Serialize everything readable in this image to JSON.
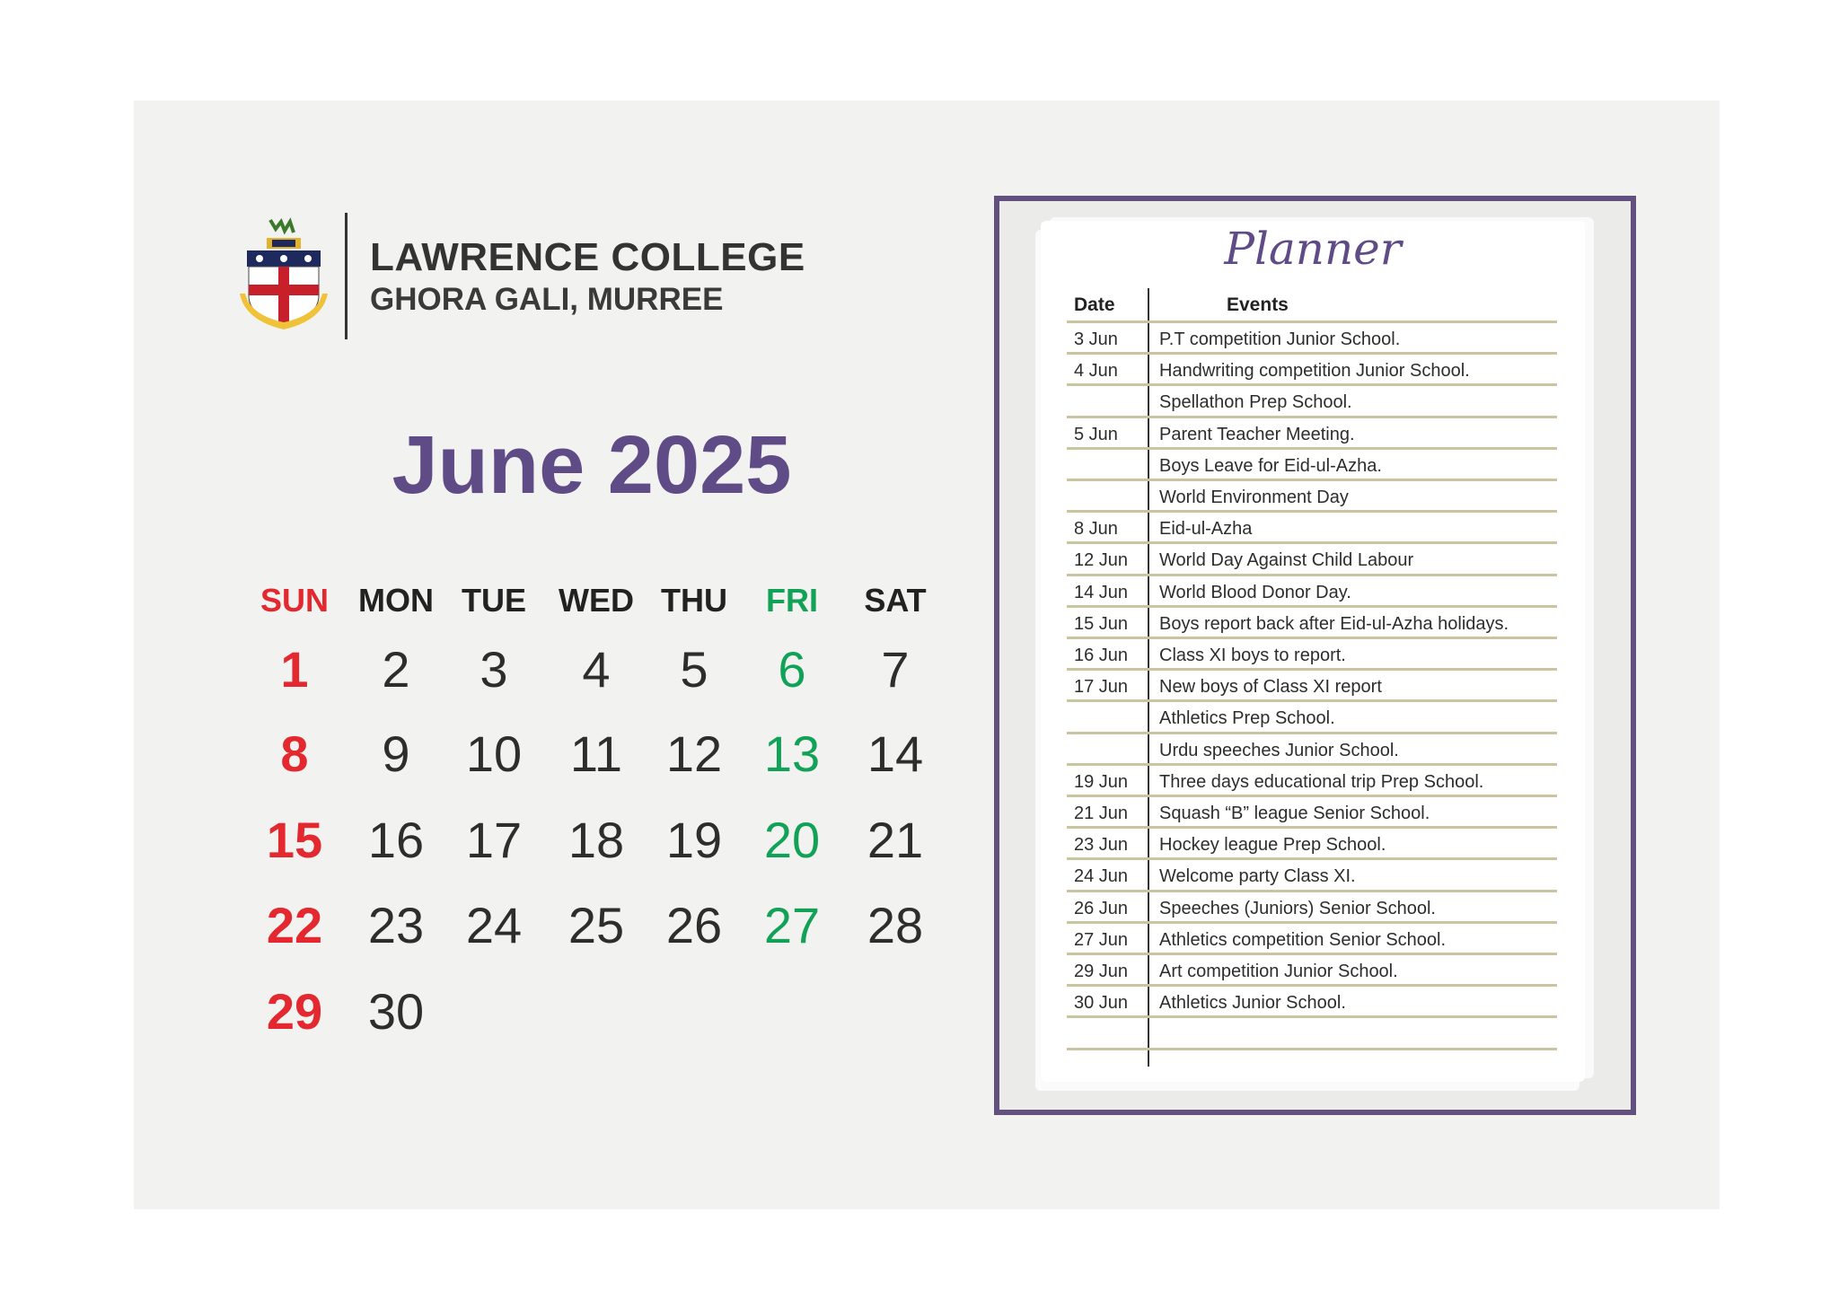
{
  "header": {
    "college_name": "LAWRENCE COLLEGE",
    "location": "GHORA GALI, MURREE",
    "logo": "college-crest"
  },
  "calendar": {
    "title": "June 2025",
    "weekdays": [
      "SUN",
      "MON",
      "TUE",
      "WED",
      "THU",
      "FRI",
      "SAT"
    ],
    "weeks": [
      [
        "1",
        "2",
        "3",
        "4",
        "5",
        "6",
        "7"
      ],
      [
        "8",
        "9",
        "10",
        "11",
        "12",
        "13",
        "14"
      ],
      [
        "15",
        "16",
        "17",
        "18",
        "19",
        "20",
        "21"
      ],
      [
        "22",
        "23",
        "24",
        "25",
        "26",
        "27",
        "28"
      ],
      [
        "29",
        "30",
        null,
        null,
        null,
        null,
        null
      ]
    ],
    "colors": {
      "sunday": "#e3282f",
      "friday": "#11a157",
      "weekday": "#2d2d2d",
      "title": "#5f4b86"
    }
  },
  "planner": {
    "title": "Planner",
    "col_date": "Date",
    "col_events": "Events",
    "frame_color": "#62517f",
    "rows": [
      {
        "date": "3 Jun",
        "event": "P.T competition Junior School."
      },
      {
        "date": "4 Jun",
        "event": "Handwriting competition Junior School."
      },
      {
        "date": "",
        "event": "Spellathon Prep School."
      },
      {
        "date": "5 Jun",
        "event": "Parent Teacher Meeting."
      },
      {
        "date": "",
        "event": "Boys Leave for Eid-ul-Azha."
      },
      {
        "date": "",
        "event": "World Environment Day"
      },
      {
        "date": "8 Jun",
        "event": "Eid-ul-Azha"
      },
      {
        "date": "12 Jun",
        "event": "World Day Against Child Labour"
      },
      {
        "date": "14 Jun",
        "event": "World Blood Donor Day."
      },
      {
        "date": "15 Jun",
        "event": "Boys report back after Eid-ul-Azha holidays."
      },
      {
        "date": "16 Jun",
        "event": "Class XI boys to report."
      },
      {
        "date": "17 Jun",
        "event": "New boys of Class XI report"
      },
      {
        "date": "",
        "event": "Athletics Prep School."
      },
      {
        "date": "",
        "event": "Urdu speeches Junior School."
      },
      {
        "date": "19 Jun",
        "event": "Three days educational trip Prep School."
      },
      {
        "date": "21 Jun",
        "event": "Squash “B” league Senior School."
      },
      {
        "date": "23 Jun",
        "event": "Hockey league Prep School."
      },
      {
        "date": "24 Jun",
        "event": "Welcome party Class XI."
      },
      {
        "date": "26 Jun",
        "event": "Speeches (Juniors) Senior School."
      },
      {
        "date": "27 Jun",
        "event": "Athletics competition Senior School."
      },
      {
        "date": "29 Jun",
        "event": "Art competition Junior School."
      },
      {
        "date": "30 Jun",
        "event": "Athletics Junior School."
      },
      {
        "date": "",
        "event": ""
      }
    ]
  }
}
